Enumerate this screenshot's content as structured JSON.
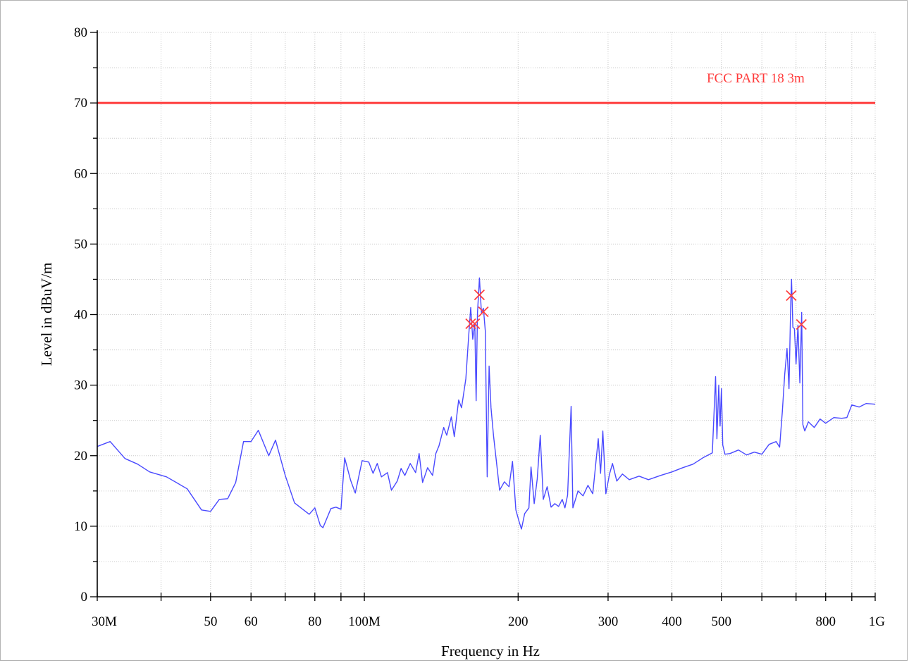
{
  "chart_data": {
    "type": "line",
    "title": "",
    "xlabel": "Frequency in Hz",
    "ylabel": "Level in dBuV/m",
    "x_scale": "log",
    "xlim": [
      30000000,
      1000000000
    ],
    "ylim": [
      0,
      80
    ],
    "grid": true,
    "x_tick_labels": [
      {
        "value": 30000000,
        "label": "30M"
      },
      {
        "value": 50000000,
        "label": "50"
      },
      {
        "value": 60000000,
        "label": "60"
      },
      {
        "value": 80000000,
        "label": "80"
      },
      {
        "value": 100000000,
        "label": "100M"
      },
      {
        "value": 200000000,
        "label": "200"
      },
      {
        "value": 300000000,
        "label": "300"
      },
      {
        "value": 400000000,
        "label": "400"
      },
      {
        "value": 500000000,
        "label": "500"
      },
      {
        "value": 800000000,
        "label": "800"
      },
      {
        "value": 1000000000,
        "label": "1G"
      }
    ],
    "y_tick_labels": [
      {
        "value": 0,
        "label": "0"
      },
      {
        "value": 10,
        "label": "10"
      },
      {
        "value": 20,
        "label": "20"
      },
      {
        "value": 30,
        "label": "30"
      },
      {
        "value": 40,
        "label": "40"
      },
      {
        "value": 50,
        "label": "50"
      },
      {
        "value": 60,
        "label": "60"
      },
      {
        "value": 70,
        "label": "70"
      },
      {
        "value": 80,
        "label": "80"
      }
    ],
    "limit_line": {
      "label": "FCC PART 18 3m",
      "value": 70,
      "color": "#ff3b3b"
    },
    "series": [
      {
        "color": "#4a4aff",
        "points": [
          [
            30000000,
            21.3
          ],
          [
            31800000,
            22
          ],
          [
            34000000,
            19.6
          ],
          [
            36000000,
            18.8
          ],
          [
            38000000,
            17.7
          ],
          [
            41000000,
            17
          ],
          [
            45000000,
            15.3
          ],
          [
            48000000,
            12.3
          ],
          [
            50000000,
            12.1
          ],
          [
            52000000,
            13.8
          ],
          [
            54000000,
            13.9
          ],
          [
            56000000,
            16.2
          ],
          [
            58000000,
            22
          ],
          [
            60000000,
            22
          ],
          [
            62000000,
            23.6
          ],
          [
            65000000,
            20
          ],
          [
            67000000,
            22.2
          ],
          [
            70000000,
            17.2
          ],
          [
            73000000,
            13.3
          ],
          [
            78000000,
            11.7
          ],
          [
            80000000,
            12.6
          ],
          [
            82000000,
            10.1
          ],
          [
            83000000,
            9.8
          ],
          [
            86000000,
            12.5
          ],
          [
            88000000,
            12.7
          ],
          [
            90000000,
            12.4
          ],
          [
            91500000,
            19.7
          ],
          [
            94000000,
            16.5
          ],
          [
            96000000,
            14.7
          ],
          [
            99000000,
            19.3
          ],
          [
            102000000,
            19.1
          ],
          [
            104000000,
            17.5
          ],
          [
            106000000,
            18.9
          ],
          [
            108000000,
            17
          ],
          [
            111000000,
            17.6
          ],
          [
            113000000,
            15.1
          ],
          [
            116000000,
            16.4
          ],
          [
            118000000,
            18.2
          ],
          [
            120000000,
            17.2
          ],
          [
            123000000,
            18.9
          ],
          [
            126000000,
            17.6
          ],
          [
            128000000,
            20.3
          ],
          [
            130000000,
            16.2
          ],
          [
            133000000,
            18.3
          ],
          [
            136000000,
            17.2
          ],
          [
            138000000,
            20.3
          ],
          [
            140000000,
            21.4
          ],
          [
            143000000,
            24
          ],
          [
            145000000,
            22.9
          ],
          [
            148000000,
            25.5
          ],
          [
            150000000,
            22.7
          ],
          [
            153000000,
            27.9
          ],
          [
            155000000,
            26.8
          ],
          [
            158000000,
            30.9
          ],
          [
            160000000,
            36.8
          ],
          [
            161500000,
            41
          ],
          [
            163000000,
            36.5
          ],
          [
            164500000,
            38.8
          ],
          [
            165500000,
            27.8
          ],
          [
            166500000,
            40.2
          ],
          [
            168000000,
            45.2
          ],
          [
            169500000,
            40.3
          ],
          [
            171000000,
            40.9
          ],
          [
            172500000,
            37.7
          ],
          [
            174000000,
            17
          ],
          [
            175500000,
            32.7
          ],
          [
            177000000,
            26.8
          ],
          [
            179000000,
            22.8
          ],
          [
            181000000,
            19.7
          ],
          [
            184000000,
            15.1
          ],
          [
            188000000,
            16.3
          ],
          [
            192000000,
            15.6
          ],
          [
            195000000,
            19.2
          ],
          [
            198000000,
            12.3
          ],
          [
            201000000,
            10.6
          ],
          [
            203000000,
            9.6
          ],
          [
            206000000,
            11.8
          ],
          [
            210000000,
            12.6
          ],
          [
            212000000,
            18.4
          ],
          [
            215000000,
            13.2
          ],
          [
            218000000,
            16.7
          ],
          [
            221000000,
            22.9
          ],
          [
            224000000,
            13.8
          ],
          [
            228000000,
            15.6
          ],
          [
            232000000,
            12.7
          ],
          [
            236000000,
            13.2
          ],
          [
            240000000,
            12.8
          ],
          [
            244000000,
            13.8
          ],
          [
            247000000,
            12.6
          ],
          [
            250000000,
            14.4
          ],
          [
            254000000,
            27
          ],
          [
            256000000,
            12.6
          ],
          [
            262000000,
            15
          ],
          [
            268000000,
            14.3
          ],
          [
            274000000,
            15.8
          ],
          [
            280000000,
            14.6
          ],
          [
            284000000,
            19.1
          ],
          [
            287000000,
            22.4
          ],
          [
            290000000,
            17.5
          ],
          [
            293000000,
            23.5
          ],
          [
            297000000,
            14.6
          ],
          [
            302000000,
            17.4
          ],
          [
            306000000,
            18.9
          ],
          [
            312000000,
            16.4
          ],
          [
            320000000,
            17.4
          ],
          [
            330000000,
            16.6
          ],
          [
            345000000,
            17.1
          ],
          [
            360000000,
            16.6
          ],
          [
            380000000,
            17.2
          ],
          [
            400000000,
            17.7
          ],
          [
            420000000,
            18.3
          ],
          [
            440000000,
            18.8
          ],
          [
            460000000,
            19.7
          ],
          [
            480000000,
            20.4
          ],
          [
            487000000,
            31.2
          ],
          [
            490000000,
            22.4
          ],
          [
            494000000,
            30
          ],
          [
            497000000,
            24.2
          ],
          [
            500000000,
            29.5
          ],
          [
            503000000,
            21.5
          ],
          [
            508000000,
            20.2
          ],
          [
            520000000,
            20.3
          ],
          [
            540000000,
            20.8
          ],
          [
            560000000,
            20.1
          ],
          [
            580000000,
            20.5
          ],
          [
            600000000,
            20.2
          ],
          [
            620000000,
            21.6
          ],
          [
            640000000,
            22
          ],
          [
            650000000,
            21.2
          ],
          [
            658000000,
            26.2
          ],
          [
            665000000,
            31.5
          ],
          [
            672000000,
            35.2
          ],
          [
            678000000,
            29.5
          ],
          [
            683000000,
            40.9
          ],
          [
            686000000,
            45
          ],
          [
            690000000,
            38.2
          ],
          [
            695000000,
            38
          ],
          [
            700000000,
            33
          ],
          [
            706000000,
            38.5
          ],
          [
            712000000,
            30.3
          ],
          [
            718000000,
            40.3
          ],
          [
            722000000,
            24.4
          ],
          [
            728000000,
            23.5
          ],
          [
            740000000,
            24.8
          ],
          [
            760000000,
            24
          ],
          [
            780000000,
            25.2
          ],
          [
            800000000,
            24.6
          ],
          [
            830000000,
            25.4
          ],
          [
            860000000,
            25.3
          ],
          [
            880000000,
            25.4
          ],
          [
            900000000,
            27.2
          ],
          [
            930000000,
            26.9
          ],
          [
            960000000,
            27.4
          ],
          [
            1000000000,
            27.3
          ]
        ]
      }
    ],
    "markers": [
      {
        "x": 161500000,
        "y": 38.7,
        "color": "#ff4040"
      },
      {
        "x": 164500000,
        "y": 38.7,
        "color": "#ff4040"
      },
      {
        "x": 168000000,
        "y": 42.8,
        "color": "#ff4040"
      },
      {
        "x": 171000000,
        "y": 40.4,
        "color": "#ff4040"
      },
      {
        "x": 685000000,
        "y": 42.7,
        "color": "#ff4040"
      },
      {
        "x": 717000000,
        "y": 38.6,
        "color": "#ff4040"
      }
    ]
  }
}
